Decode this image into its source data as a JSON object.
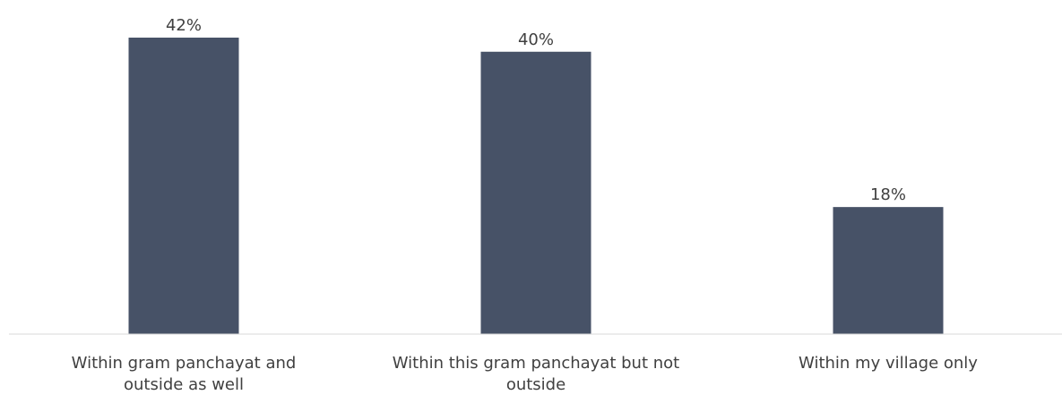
{
  "chart_data": {
    "type": "bar",
    "categories": [
      [
        "Within gram panchayat and",
        "outside as well"
      ],
      [
        "Within this gram panchayat but not",
        "outside"
      ],
      [
        "Within my village only"
      ]
    ],
    "values": [
      42,
      40,
      18
    ],
    "value_labels": [
      "42%",
      "40%",
      "18%"
    ],
    "unit": "%",
    "ylim": [
      0,
      42
    ],
    "grid": false,
    "legend": "none",
    "bar_color": "#475267",
    "axis_color": "#d9d9d9"
  }
}
